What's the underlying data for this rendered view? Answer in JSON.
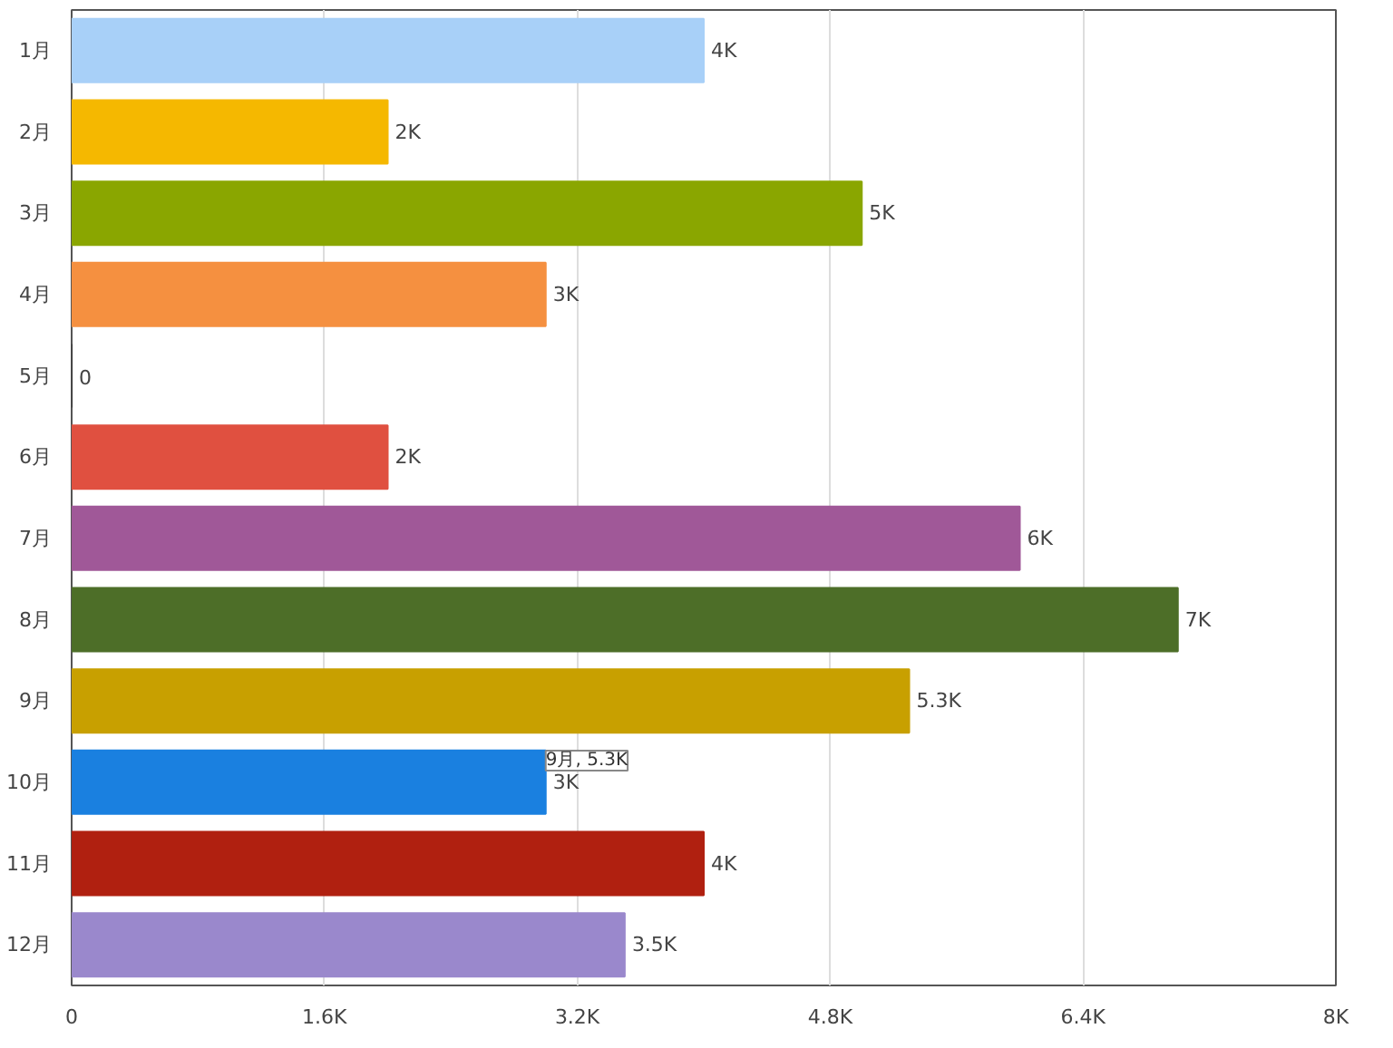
{
  "chart_data": {
    "type": "bar",
    "orientation": "horizontal",
    "categories": [
      "1月",
      "2月",
      "3月",
      "4月",
      "5月",
      "6月",
      "7月",
      "8月",
      "9月",
      "10月",
      "11月",
      "12月"
    ],
    "values": [
      4000,
      2000,
      5000,
      3000,
      0,
      2000,
      6000,
      7000,
      5300,
      3000,
      4000,
      3500
    ],
    "colors": [
      "#a8d0f8",
      "#f5b800",
      "#8aa600",
      "#f59040",
      "#333333",
      "#e05040",
      "#a05898",
      "#4d6e28",
      "#c8a000",
      "#1a80e0",
      "#b02010",
      "#9a88cc"
    ],
    "value_labels": [
      "4K",
      "2K",
      "5K",
      "3K",
      "0",
      "2K",
      "6K",
      "7K",
      "5.3K",
      "3K",
      "4K",
      "3.5K"
    ],
    "xlim": [
      0,
      8000
    ],
    "xticks": [
      0,
      {
        "value": 1600,
        "label": "1.6K"
      },
      {
        "value": 3200,
        "label": "3.2K"
      },
      {
        "value": 4800,
        "label": "4.8K"
      },
      {
        "value": 6400,
        "label": "6.4K"
      },
      {
        "value": 8000,
        "label": "8K"
      }
    ],
    "grid": "x",
    "annotations": [
      "9月, 5.3K"
    ]
  }
}
